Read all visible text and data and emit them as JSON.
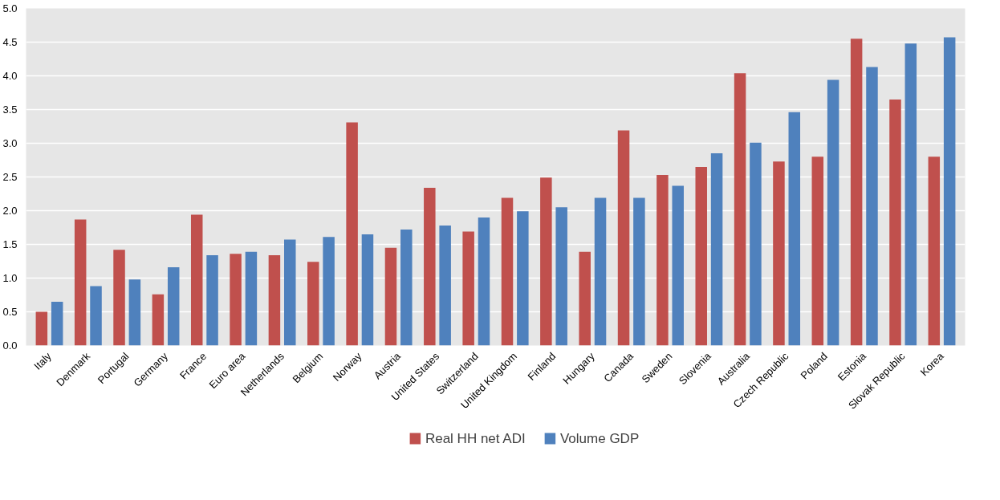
{
  "chart_data": {
    "type": "bar",
    "categories": [
      "Italy",
      "Denmark",
      "Portugal",
      "Germany",
      "France",
      "Euro area",
      "Netherlands",
      "Belgium",
      "Norway",
      "Austria",
      "United States",
      "Switzerland",
      "United Kingdom",
      "Finland",
      "Hungary",
      "Canada",
      "Sweden",
      "Slovenia",
      "Australia",
      "Czech Republic",
      "Poland",
      "Estonia",
      "Slovak Republic",
      "Korea"
    ],
    "series": [
      {
        "name": "Real HH net ADI",
        "color": "#c0504d",
        "values": [
          0.5,
          1.87,
          1.42,
          0.76,
          1.94,
          1.36,
          1.34,
          1.24,
          3.31,
          1.45,
          2.34,
          1.69,
          2.19,
          2.49,
          1.39,
          3.19,
          2.53,
          2.65,
          4.04,
          2.73,
          2.8,
          4.55,
          3.65,
          2.8
        ]
      },
      {
        "name": "Volume GDP",
        "color": "#4f81bd",
        "values": [
          0.65,
          0.88,
          0.98,
          1.16,
          1.34,
          1.39,
          1.57,
          1.61,
          1.65,
          1.72,
          1.78,
          1.9,
          1.99,
          2.05,
          2.19,
          2.19,
          2.37,
          2.85,
          3.01,
          3.46,
          3.94,
          4.13,
          4.48,
          4.57
        ]
      }
    ],
    "ylim": [
      0,
      5
    ],
    "yticks": [
      {
        "value": 0,
        "label": "0.0"
      },
      0.5,
      {
        "value": 1,
        "label": "1.0"
      },
      1.5,
      {
        "value": 2,
        "label": "2.0"
      },
      2.5,
      {
        "value": 3,
        "label": "3.0"
      },
      3.5,
      {
        "value": 4,
        "label": "4.0"
      },
      4.5,
      {
        "value": 5,
        "label": "5.0"
      }
    ],
    "grid": "y",
    "legend": "bottom"
  }
}
